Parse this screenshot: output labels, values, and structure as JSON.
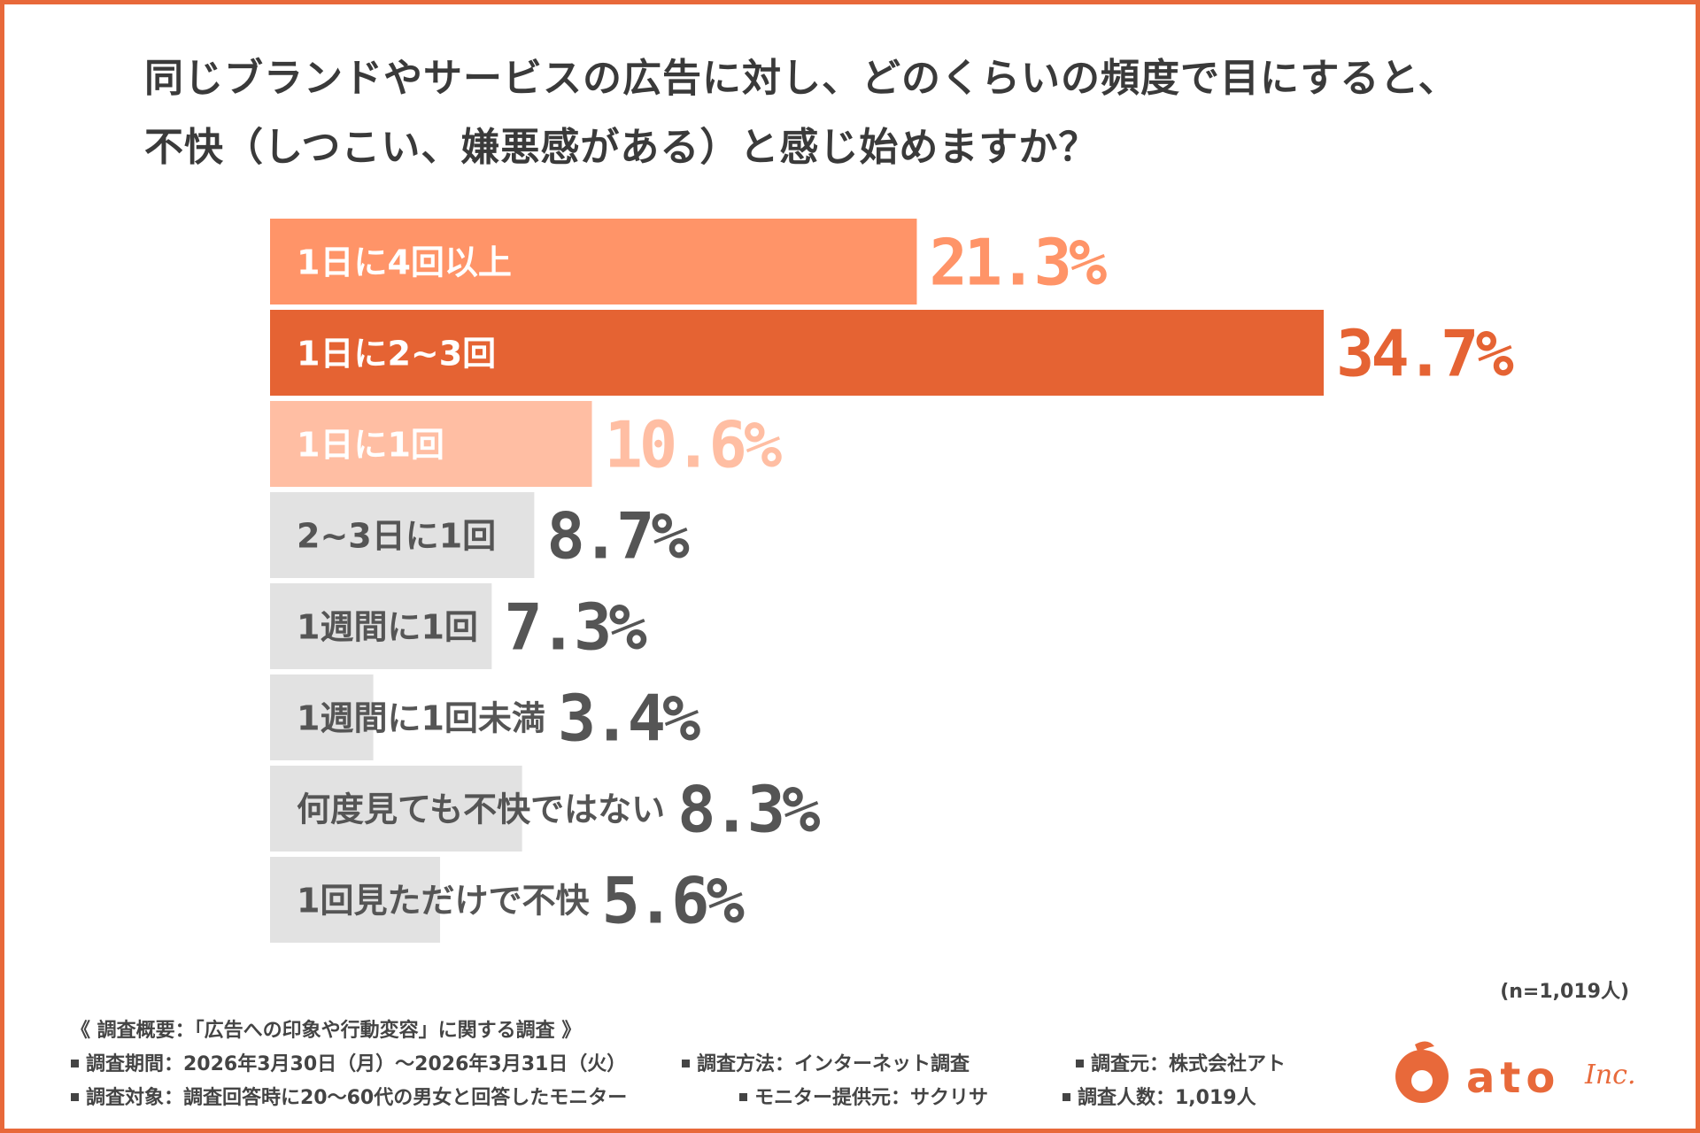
{
  "title_line1": "同じブランドやサービスの広告に対し、どのくらいの頻度で目にすると、",
  "title_line2": "不快（しつこい、嫌悪感がある）と感じ始めますか？",
  "chart_data": {
    "type": "bar",
    "orientation": "horizontal",
    "categories": [
      "1日に4回以上",
      "1日に2~3回",
      "1日に1回",
      "2~3日に1回",
      "1週間に1回",
      "1週間に1回未満",
      "何度見ても不快ではない",
      "1回見ただけで不快"
    ],
    "values": [
      21.3,
      34.7,
      10.6,
      8.7,
      7.3,
      3.4,
      8.3,
      5.6
    ],
    "value_labels": [
      "21.3%",
      "34.7%",
      "10.6%",
      "8.7%",
      "7.3%",
      "3.4%",
      "8.3%",
      "5.6%"
    ],
    "bar_colors": [
      "#FF9468",
      "#E56333",
      "#FFBEA3",
      "#E2E2E2",
      "#E2E2E2",
      "#E2E2E2",
      "#E2E2E2",
      "#E2E2E2"
    ],
    "category_label_colors": [
      "#ffffff",
      "#ffffff",
      "#ffffff",
      "#555555",
      "#555555",
      "#555555",
      "#555555",
      "#555555"
    ],
    "value_label_colors": [
      "#FF9468",
      "#E56333",
      "#FFBEA3",
      "#555555",
      "#555555",
      "#555555",
      "#555555",
      "#555555"
    ],
    "xlim": [
      0,
      34.7
    ]
  },
  "sample_note": "(n=1,019人)",
  "footer": {
    "heading": "《 調査概要：「広告への印象や行動変容」に関する調査 》",
    "period": "調査期間：2026年3月30日（月）～2026年3月31日（火）",
    "method": "調査方法：インターネット調査",
    "source": "調査元：株式会社アト",
    "target": "調査対象：調査回答時に20～60代の男女と回答したモニター",
    "provider": "モニター提供元：サクリサ",
    "count": "調査人数：1,019人"
  },
  "logo": {
    "text": "ato",
    "script": "Inc.",
    "color": "#E8693A"
  }
}
